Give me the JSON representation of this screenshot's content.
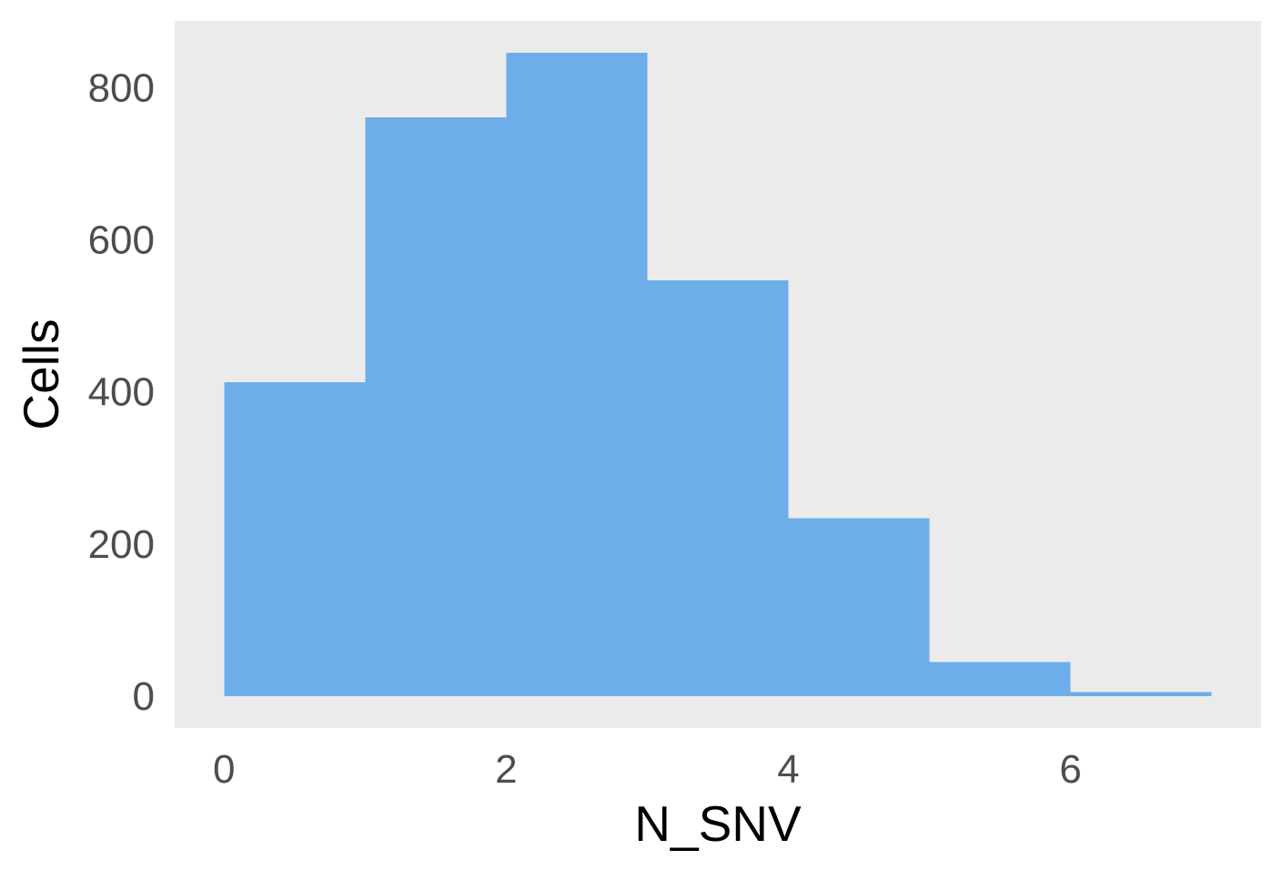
{
  "chart_data": {
    "type": "bar",
    "variant": "histogram",
    "bins": [
      {
        "x0": 0,
        "x1": 1,
        "count": 413
      },
      {
        "x0": 1,
        "x1": 2,
        "count": 761
      },
      {
        "x0": 2,
        "x1": 3,
        "count": 846
      },
      {
        "x0": 3,
        "x1": 4,
        "count": 547
      },
      {
        "x0": 4,
        "x1": 5,
        "count": 234
      },
      {
        "x0": 5,
        "x1": 6,
        "count": 45
      },
      {
        "x0": 6,
        "x1": 7,
        "count": 5
      }
    ],
    "title": "",
    "xlabel": "N_SNV",
    "ylabel": "Cells",
    "xlim": [
      -0.35,
      7.35
    ],
    "ylim": [
      -42,
      888
    ],
    "xticks": [
      0,
      2,
      4,
      6
    ],
    "yticks": [
      0,
      200,
      400,
      600,
      800
    ],
    "grid": false,
    "legend": "none",
    "colors": {
      "bar": "#6daeea",
      "panel": "#ebebeb",
      "background": "#ffffff",
      "tick_text": "#4d4d4d",
      "axis_title": "#000000"
    }
  }
}
